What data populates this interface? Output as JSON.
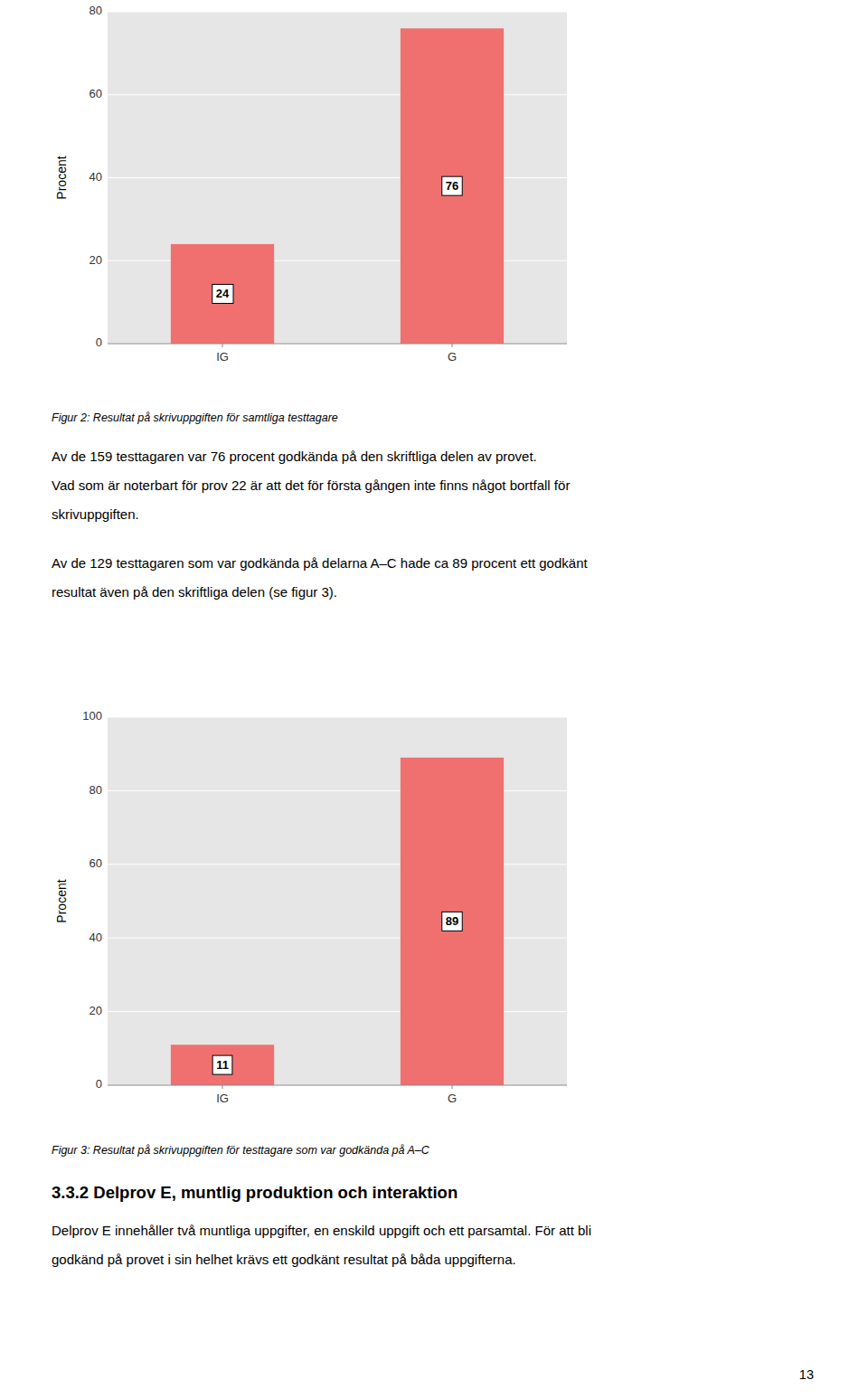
{
  "chart_data": [
    {
      "type": "bar",
      "title": "Figur 2: Resultat på skrivuppgiften för samtliga testtagare",
      "categories": [
        "IG",
        "G"
      ],
      "values": [
        24,
        76
      ],
      "color": "#F07070",
      "ylabel": "Procent",
      "ylim": [
        0,
        80
      ],
      "yticks": [
        0,
        20,
        40,
        60,
        80
      ],
      "grid": true,
      "data_labels": true
    },
    {
      "type": "bar",
      "title": "Figur 3: Resultat på skrivuppgiften för testtagare som var godkända på A–C",
      "categories": [
        "IG",
        "G"
      ],
      "values": [
        11,
        89
      ],
      "color": "#F07070",
      "ylabel": "Procent",
      "ylim": [
        0,
        100
      ],
      "yticks": [
        0,
        20,
        40,
        60,
        80,
        100
      ],
      "grid": true,
      "data_labels": true
    }
  ],
  "page": {
    "paragraphs": [
      [
        "Av de 159 testtagaren var 76 procent godkända på den skriftliga delen av provet.",
        "Vad som är noterbart för prov 22 är att det för första gången inte finns något bortfall för",
        "skrivuppgiften."
      ],
      [
        "Av de 129 testtagaren som var godkända på delarna A–C hade ca 89 procent ett godkänt",
        "resultat även på den skriftliga delen (se figur 3)."
      ]
    ],
    "section_title": "3.3.2 Delprov E, muntlig produktion och interaktion",
    "section_paragraph": [
      "Delprov E innehåller två muntliga uppgifter, en enskild uppgift och ett parsamtal. För att bli",
      "godkänd på provet i sin helhet krävs ett godkänt resultat på båda uppgifterna."
    ],
    "page_number": "13"
  }
}
